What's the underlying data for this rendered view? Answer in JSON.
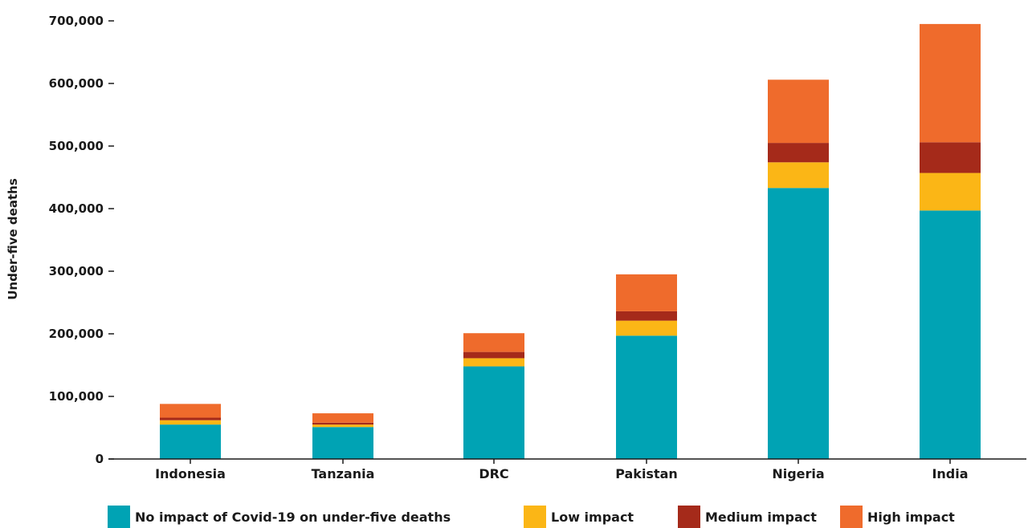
{
  "chart_data": {
    "type": "bar",
    "stacked": true,
    "categories": [
      "Indonesia",
      "Tanzania",
      "DRC",
      "Pakistan",
      "Nigeria",
      "India"
    ],
    "series": [
      {
        "name": "No impact of Covid-19 on under-five deaths",
        "color": "#00a3b4",
        "values": [
          55000,
          51000,
          148000,
          197000,
          433000,
          397000
        ]
      },
      {
        "name": "Low impact",
        "color": "#fbb616",
        "values": [
          7000,
          4000,
          13000,
          24000,
          41000,
          60000
        ]
      },
      {
        "name": "Medium impact",
        "color": "#a52a1a",
        "values": [
          4000,
          3000,
          10000,
          15000,
          31000,
          49000
        ]
      },
      {
        "name": "High impact",
        "color": "#ef6b2c",
        "values": [
          22000,
          15000,
          30000,
          59000,
          101000,
          189000
        ]
      }
    ],
    "title": "",
    "xlabel": "",
    "ylabel": "Under-five deaths",
    "ylim": [
      0,
      700000
    ],
    "yticks": [
      0,
      100000,
      200000,
      300000,
      400000,
      500000,
      600000,
      700000
    ],
    "ytick_labels": [
      "0",
      "100,000",
      "200,000",
      "300,000",
      "400,000",
      "500,000",
      "600,000",
      "700,000"
    ],
    "grid": false,
    "legend_position": "bottom"
  }
}
